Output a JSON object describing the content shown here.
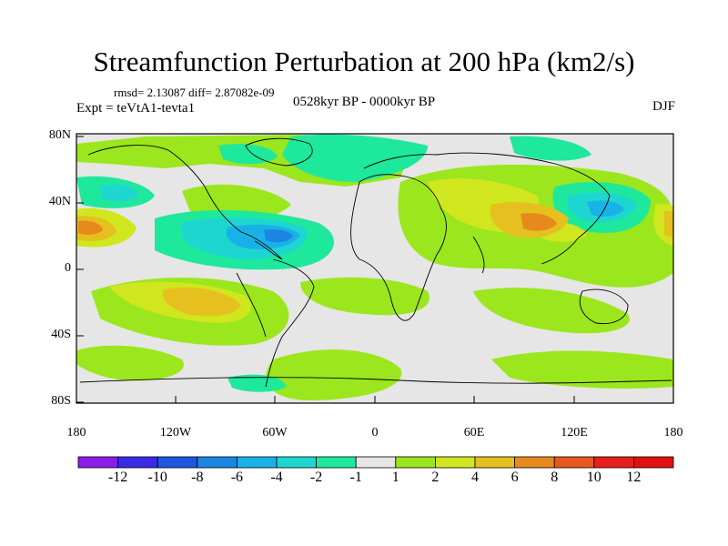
{
  "title": "Streamfunction Perturbation at 200 hPa (km2/s)",
  "stats": "rmsd= 2.13087 diff= 2.87082e-09",
  "experiment": "Expt = teVtA1-tevta1",
  "period": "0528kyr BP - 0000kyr BP",
  "season": "DJF",
  "y_labels": [
    "80N",
    "40N",
    "0",
    "40S",
    "80S"
  ],
  "x_labels": [
    "180",
    "120W",
    "60W",
    "0",
    "60E",
    "120E",
    "180"
  ],
  "colorbar": {
    "labels": [
      "-12",
      "-10",
      "-8",
      "-6",
      "-4",
      "-2",
      "-1",
      "1",
      "2",
      "4",
      "6",
      "8",
      "10",
      "12"
    ],
    "colors": [
      "#8a1ee8",
      "#3a2ae6",
      "#1f55e0",
      "#1a86e2",
      "#19b2e6",
      "#1ed6d0",
      "#1ee89c",
      "#e6e6e6",
      "#9ce61e",
      "#d0e61e",
      "#e6c01e",
      "#e68a1e",
      "#e6581e",
      "#e61e1e",
      "#e01010"
    ]
  }
}
